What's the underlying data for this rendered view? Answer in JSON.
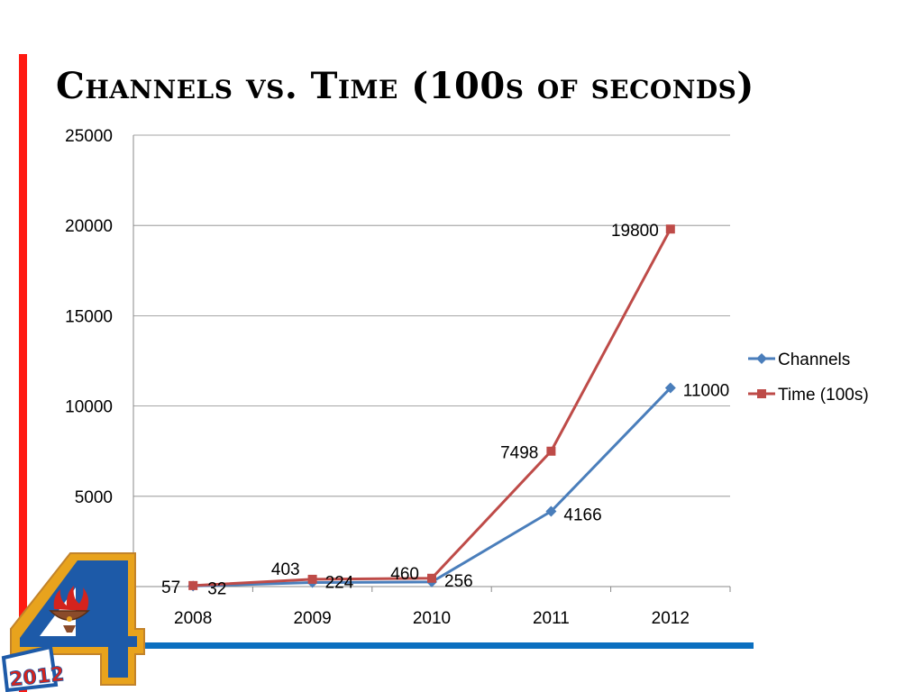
{
  "slide": {
    "title": "Channels vs. Time (100s of seconds)",
    "logo_text": "2012",
    "colors": {
      "accent_red": "#ff1a12",
      "accent_blue": "#0b6fc0"
    }
  },
  "chart_data": {
    "type": "line",
    "title": "",
    "xlabel": "",
    "ylabel": "",
    "categories": [
      "2008",
      "2009",
      "2010",
      "2011",
      "2012"
    ],
    "ylim": [
      0,
      25000
    ],
    "yticks": [
      0,
      5000,
      10000,
      15000,
      20000,
      25000
    ],
    "grid": true,
    "legend": "right",
    "series": [
      {
        "name": "Channels",
        "values": [
          32,
          224,
          256,
          4166,
          11000
        ],
        "labels": [
          "32",
          "224",
          "256",
          "4166",
          "11000"
        ],
        "color": "#4a7ebb",
        "marker": "diamond"
      },
      {
        "name": "Time (100s)",
        "values": [
          57,
          403,
          460,
          7498,
          19800
        ],
        "labels": [
          "57",
          "403",
          "460",
          "7498",
          "19800"
        ],
        "color": "#be4b48",
        "marker": "square"
      }
    ]
  }
}
